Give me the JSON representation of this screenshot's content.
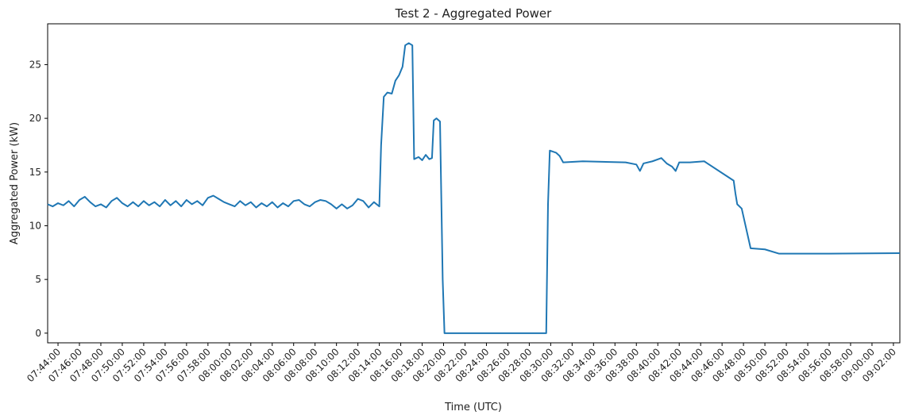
{
  "chart_data": {
    "type": "line",
    "title": "Test 2 - Aggregated Power",
    "xlabel": "Time (UTC)",
    "ylabel": "Aggregated Power (kW)",
    "xlim": [
      "07:43:02",
      "09:02:36"
    ],
    "ylim": [
      -0.9,
      28.8
    ],
    "xticks": [
      "07:44:00",
      "07:46:00",
      "07:48:00",
      "07:50:00",
      "07:52:00",
      "07:54:00",
      "07:56:00",
      "07:58:00",
      "08:00:00",
      "08:02:00",
      "08:04:00",
      "08:06:00",
      "08:08:00",
      "08:10:00",
      "08:12:00",
      "08:14:00",
      "08:16:00",
      "08:18:00",
      "08:20:00",
      "08:22:00",
      "08:24:00",
      "08:26:00",
      "08:28:00",
      "08:30:00",
      "08:32:00",
      "08:34:00",
      "08:36:00",
      "08:38:00",
      "08:40:00",
      "08:42:00",
      "08:44:00",
      "08:46:00",
      "08:48:00",
      "08:50:00",
      "08:52:00",
      "08:54:00",
      "08:56:00",
      "08:58:00",
      "09:00:00",
      "09:02:00"
    ],
    "yticks": [
      0,
      5,
      10,
      15,
      20,
      25
    ],
    "x": [
      "07:43:02",
      "07:43:30",
      "07:44:00",
      "07:44:30",
      "07:45:00",
      "07:45:30",
      "07:46:00",
      "07:46:30",
      "07:47:00",
      "07:47:30",
      "07:48:00",
      "07:48:30",
      "07:49:00",
      "07:49:30",
      "07:50:00",
      "07:50:30",
      "07:51:00",
      "07:51:30",
      "07:52:00",
      "07:52:30",
      "07:53:00",
      "07:53:30",
      "07:54:00",
      "07:54:30",
      "07:55:00",
      "07:55:30",
      "07:56:00",
      "07:56:30",
      "07:57:00",
      "07:57:30",
      "07:58:00",
      "07:58:30",
      "07:59:00",
      "07:59:30",
      "08:00:00",
      "08:00:30",
      "08:01:00",
      "08:01:30",
      "08:02:00",
      "08:02:30",
      "08:03:00",
      "08:03:30",
      "08:04:00",
      "08:04:30",
      "08:05:00",
      "08:05:30",
      "08:06:00",
      "08:06:30",
      "08:07:00",
      "08:07:30",
      "08:08:00",
      "08:08:30",
      "08:09:00",
      "08:09:30",
      "08:10:00",
      "08:10:30",
      "08:11:00",
      "08:11:30",
      "08:12:00",
      "08:12:30",
      "08:13:00",
      "08:13:30",
      "08:14:00",
      "08:14:10",
      "08:14:25",
      "08:14:45",
      "08:15:10",
      "08:15:30",
      "08:15:50",
      "08:16:10",
      "08:16:25",
      "08:16:45",
      "08:17:05",
      "08:17:15",
      "08:17:40",
      "08:18:00",
      "08:18:20",
      "08:18:40",
      "08:18:55",
      "08:19:05",
      "08:19:20",
      "08:19:40",
      "08:19:55",
      "08:20:05",
      "08:29:35",
      "08:29:45",
      "08:29:55",
      "08:30:30",
      "08:30:50",
      "08:31:10",
      "08:33:00",
      "08:37:00",
      "08:38:00",
      "08:38:20",
      "08:38:40",
      "08:39:30",
      "08:40:20",
      "08:40:50",
      "08:41:20",
      "08:41:40",
      "08:42:00",
      "08:43:00",
      "08:44:20",
      "08:47:05",
      "08:47:15",
      "08:47:25",
      "08:47:50",
      "08:48:40",
      "08:50:00",
      "08:51:20",
      "08:56:00",
      "09:02:36"
    ],
    "series": [
      {
        "name": "Aggregated Power",
        "color": "#1f77b4",
        "values": [
          12.0,
          11.8,
          12.1,
          11.9,
          12.3,
          11.8,
          12.4,
          12.7,
          12.2,
          11.8,
          12.0,
          11.7,
          12.3,
          12.6,
          12.1,
          11.8,
          12.2,
          11.8,
          12.3,
          11.9,
          12.2,
          11.8,
          12.4,
          11.9,
          12.3,
          11.8,
          12.4,
          12.0,
          12.3,
          11.9,
          12.6,
          12.8,
          12.5,
          12.2,
          12.0,
          11.8,
          12.3,
          11.9,
          12.2,
          11.7,
          12.1,
          11.8,
          12.2,
          11.7,
          12.1,
          11.8,
          12.3,
          12.4,
          12.0,
          11.8,
          12.2,
          12.4,
          12.3,
          12.0,
          11.6,
          12.0,
          11.6,
          11.9,
          12.5,
          12.3,
          11.7,
          12.2,
          11.8,
          17.5,
          22.0,
          22.4,
          22.3,
          23.5,
          24.0,
          24.8,
          26.8,
          27.0,
          26.8,
          16.2,
          16.4,
          16.1,
          16.6,
          16.2,
          16.3,
          19.8,
          20.0,
          19.7,
          5.0,
          0,
          0,
          12,
          17,
          16.8,
          16.5,
          15.9,
          16.0,
          15.9,
          15.7,
          15.1,
          15.8,
          16.0,
          16.3,
          15.8,
          15.5,
          15.1,
          15.9,
          15.9,
          16.0,
          14.2,
          13.0,
          12.0,
          11.6,
          7.9,
          7.8,
          7.4,
          7.4,
          7.45
        ]
      }
    ]
  }
}
